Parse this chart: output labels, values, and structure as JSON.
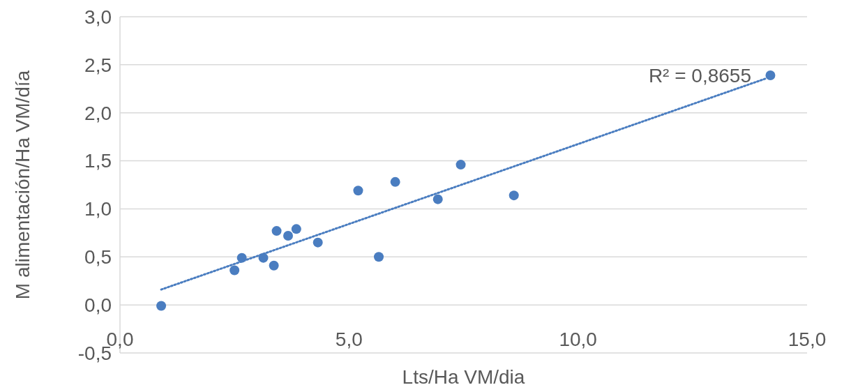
{
  "chart_data": {
    "type": "scatter",
    "xlabel": "Lts/Ha VM/dia",
    "ylabel": "M alimentación/Ha VM/día",
    "xlim": [
      0,
      15
    ],
    "xticks": [
      {
        "value": 0,
        "label": "0,0"
      },
      {
        "value": 5,
        "label": "5,0"
      },
      {
        "value": 10,
        "label": "10,0"
      },
      {
        "value": 15,
        "label": "15,0"
      }
    ],
    "ylim": [
      -0.5,
      3
    ],
    "yticks": [
      {
        "value": -0.5,
        "label": "-0,5"
      },
      {
        "value": 0,
        "label": "0,0"
      },
      {
        "value": 0.5,
        "label": "0,5"
      },
      {
        "value": 1,
        "label": "1,0"
      },
      {
        "value": 1.5,
        "label": "1,5"
      },
      {
        "value": 2,
        "label": "2,0"
      },
      {
        "value": 2.5,
        "label": "2,5"
      },
      {
        "value": 3,
        "label": "3,0"
      }
    ],
    "grid": "y",
    "marker": "circle",
    "annotations": [
      "R² = 0,8655"
    ],
    "series": [
      {
        "color": "#4a7dc0",
        "x": [
          0.9,
          2.5,
          2.66,
          3.13,
          3.36,
          3.42,
          3.67,
          3.85,
          4.32,
          5.2,
          5.65,
          6.01,
          6.94,
          7.44,
          8.6,
          14.2
        ],
        "values": [
          -0.01,
          0.36,
          0.49,
          0.49,
          0.41,
          0.77,
          0.72,
          0.79,
          0.65,
          1.19,
          0.5,
          1.28,
          1.1,
          1.46,
          1.14,
          2.39
        ]
      },
      {
        "type": "line",
        "color": "#4a7dc0",
        "line_style": "dotted",
        "marker": "none",
        "x": [
          0.9,
          14.12
        ],
        "values": [
          0.16,
          2.36
        ]
      }
    ]
  }
}
